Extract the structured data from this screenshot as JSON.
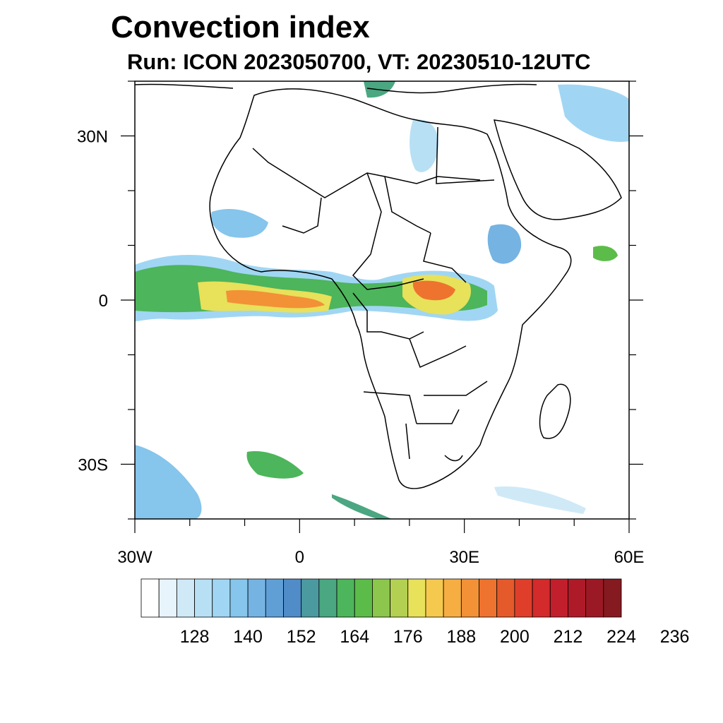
{
  "title": "Convection index",
  "subtitle": "Run: ICON 2023050700,  VT: 20230510-12UTC",
  "axes": {
    "lon_ticks": [
      {
        "value": -30,
        "label": "30W"
      },
      {
        "value": 0,
        "label": "0"
      },
      {
        "value": 30,
        "label": "30E"
      },
      {
        "value": 60,
        "label": "60E"
      }
    ],
    "lat_ticks": [
      {
        "value": 30,
        "label": "30N"
      },
      {
        "value": 0,
        "label": "0"
      },
      {
        "value": -30,
        "label": "30S"
      }
    ],
    "lon_range": [
      -30,
      60
    ],
    "lat_range": [
      -40,
      40
    ]
  },
  "colorbar": {
    "labels": [
      "128",
      "140",
      "152",
      "164",
      "176",
      "188",
      "200",
      "212",
      "224",
      "236"
    ],
    "colors": [
      "#ffffff",
      "#e8f4fb",
      "#cfe9f7",
      "#b8e0f5",
      "#a0d6f3",
      "#86c5ec",
      "#75b3e2",
      "#5f9fd6",
      "#4f8cc8",
      "#4b9aa0",
      "#4aa781",
      "#4db55b",
      "#5cbc49",
      "#8cc64c",
      "#b3d052",
      "#e8e15a",
      "#f5c84e",
      "#f6ae42",
      "#f39137",
      "#ee732f",
      "#e55a2a",
      "#df3f2a",
      "#d32a2b",
      "#c11f2b",
      "#ae1a28",
      "#9b1925",
      "#861a21"
    ]
  },
  "colors": {
    "coast": "#000000",
    "frame": "#000000"
  }
}
